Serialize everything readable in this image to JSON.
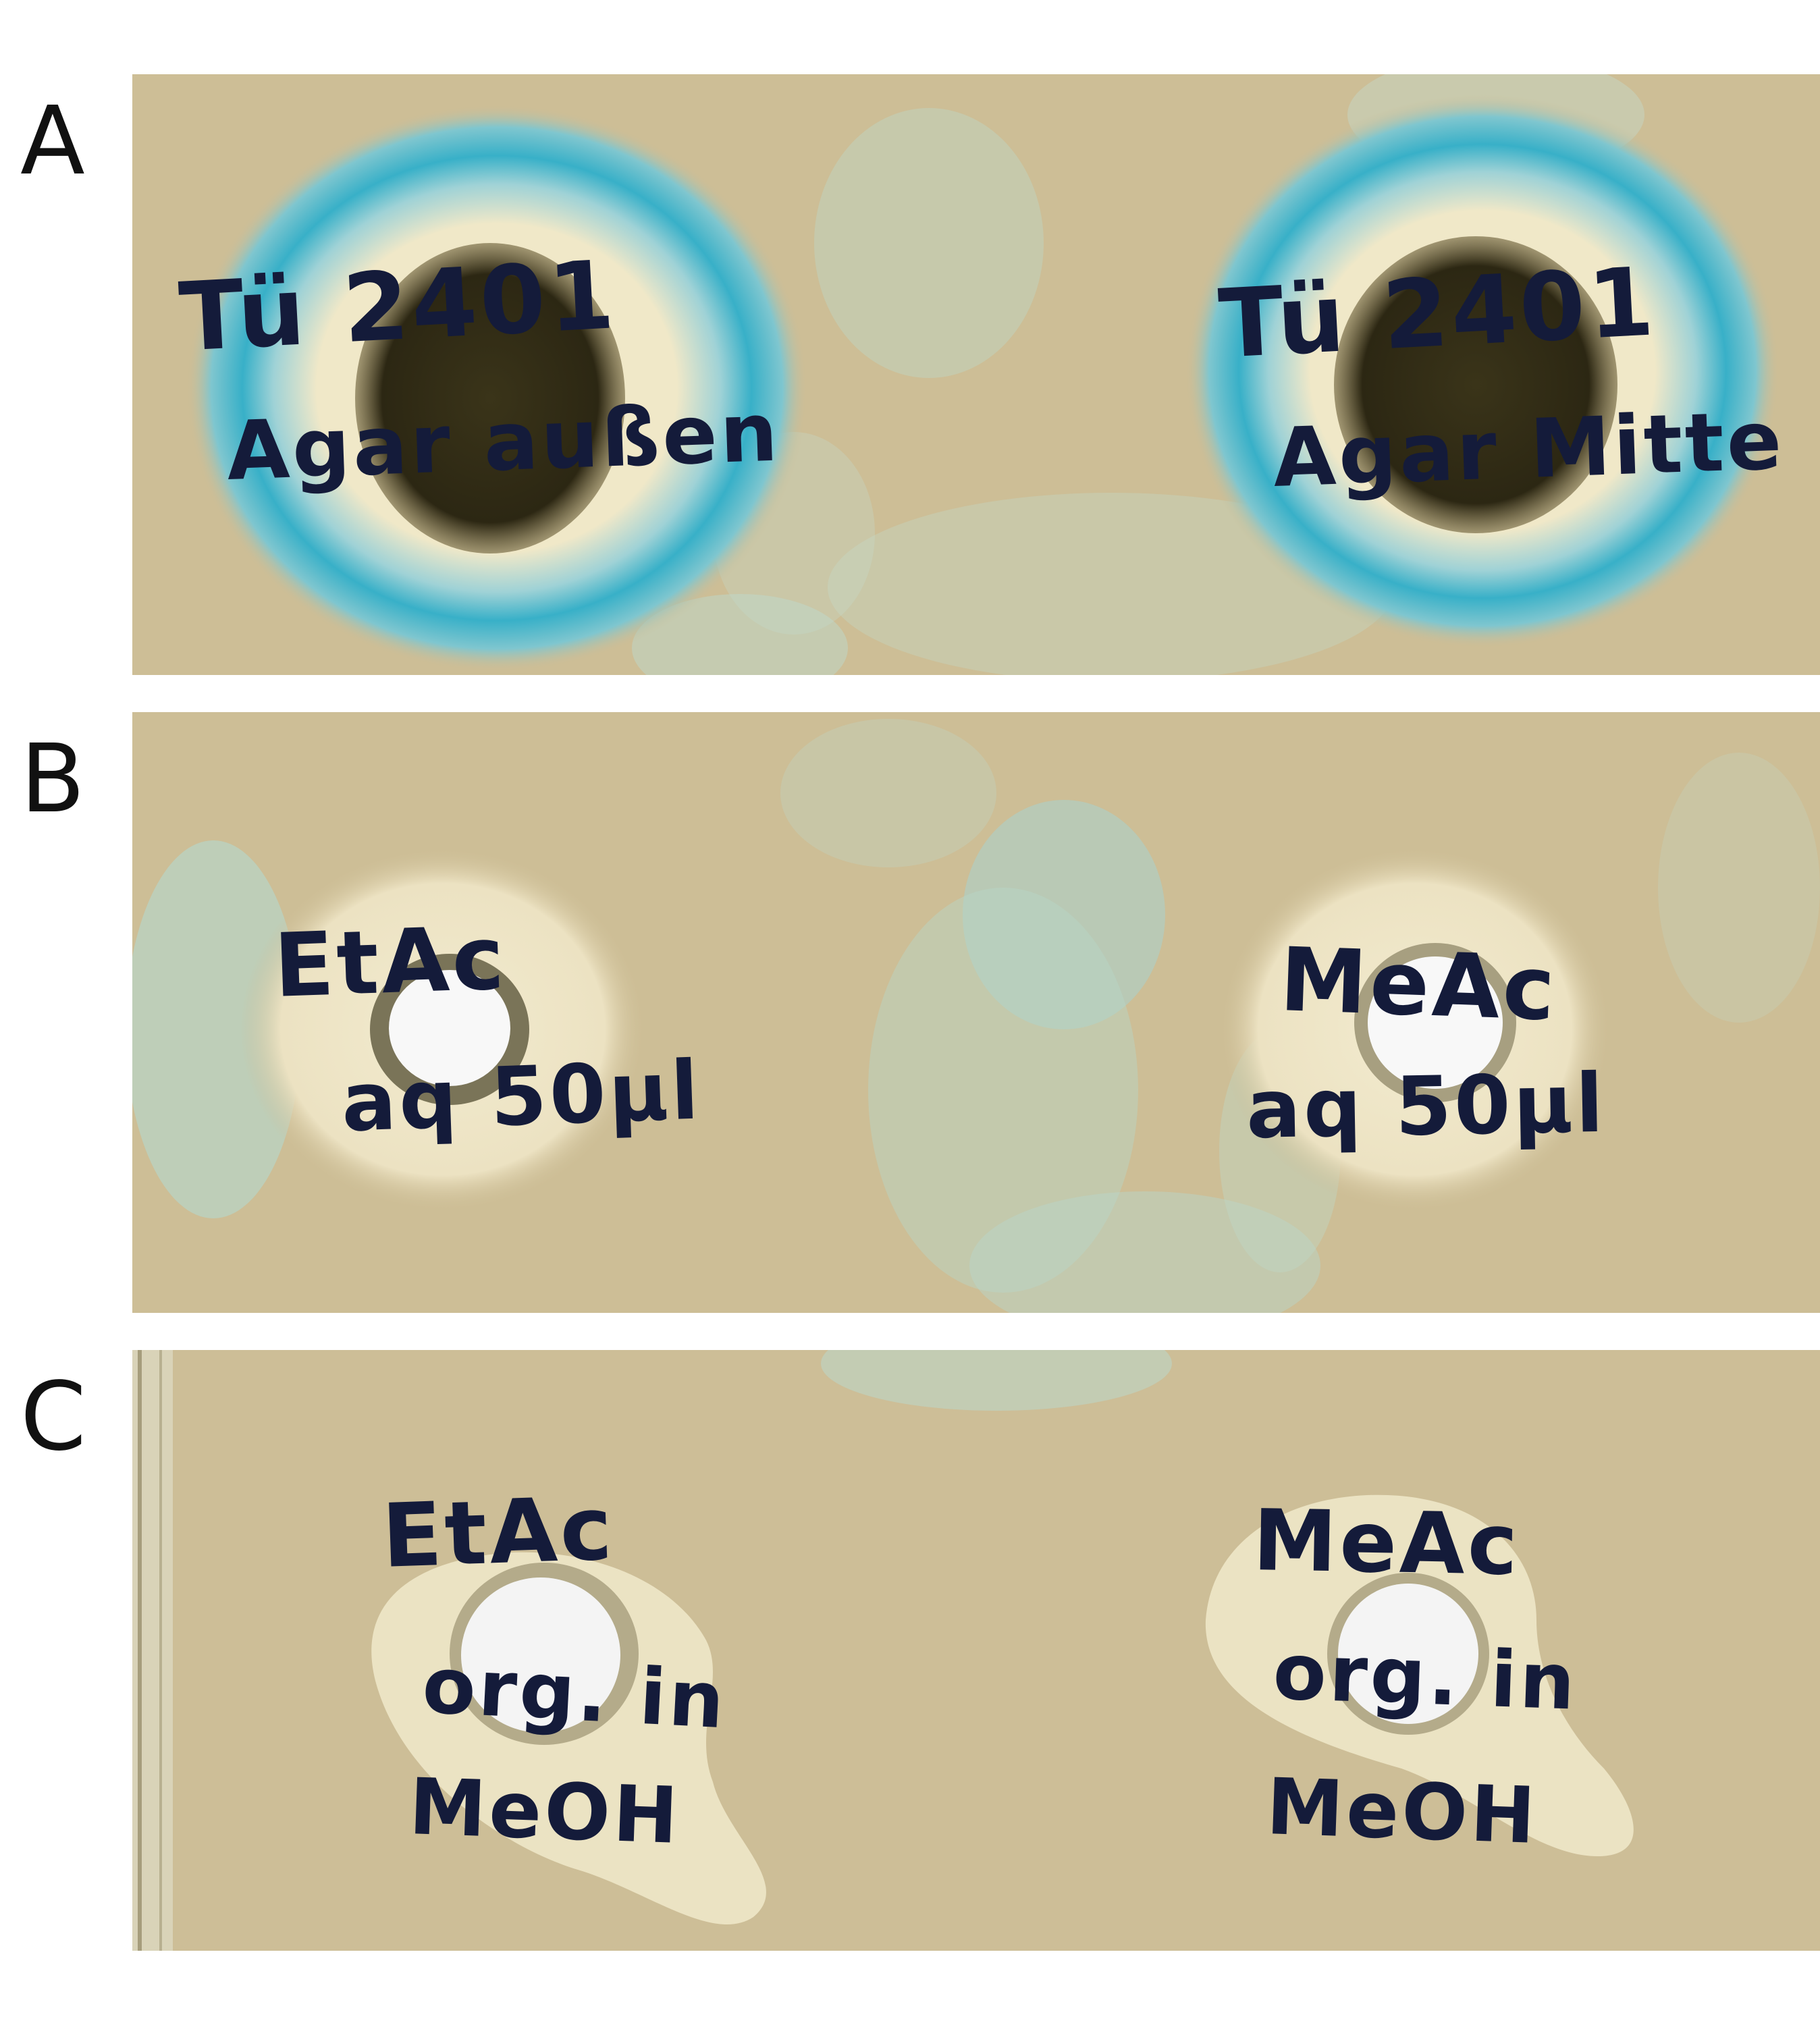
{
  "panels": [
    {
      "label": "A",
      "left_spot": {
        "line1": "Tü 2401",
        "line2": "Agar außen"
      },
      "right_spot": {
        "line1": "Tü 2401",
        "line2": "Agar Mitte"
      }
    },
    {
      "label": "B",
      "left_well": {
        "line1": "EtAc",
        "line2": "aq 50µl"
      },
      "right_well": {
        "line1": "MeAc",
        "line2": "aq 50µl"
      }
    },
    {
      "label": "C",
      "left_well": {
        "line1": "EtAc",
        "line2": "org. in",
        "line3": "MeOH"
      },
      "right_well": {
        "line1": "MeAc",
        "line2": "org. in",
        "line3": "MeOH"
      }
    }
  ],
  "colors": {
    "agar": "#cdbe96",
    "halo_blue": "#3fb3c9",
    "clear_zone": "#ebe3c6",
    "colony": "#2e2a17",
    "marker_ink": "#141b3a"
  }
}
